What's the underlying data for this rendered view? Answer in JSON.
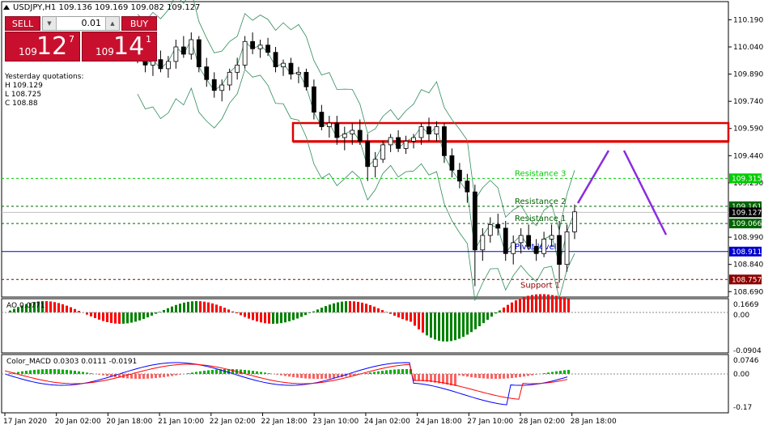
{
  "window": {
    "symbol_title": "USDJPY,H1  109.136 109.169 109.082 109.127",
    "bg": "#ffffff",
    "frame_color": "#000000"
  },
  "trade_panel": {
    "sell_label": "SELL",
    "buy_label": "BUY",
    "lot_value": "0.01",
    "sell_price_prefix": "109",
    "sell_price_big": "12",
    "sell_price_sup": "7",
    "buy_price_prefix": "109",
    "buy_price_big": "14",
    "buy_price_sup": "1",
    "color": "#c8102e"
  },
  "yesterday": {
    "title": "Yesterday quotations:",
    "high": "H 109.129",
    "low": "L 108.725",
    "close": "C 108.88"
  },
  "price_axis": {
    "ticks": [
      "110.190",
      "110.040",
      "109.890",
      "109.740",
      "109.590",
      "109.440",
      "109.290",
      "108.990",
      "108.840",
      "108.690"
    ],
    "tick_values": [
      110.19,
      110.04,
      109.89,
      109.74,
      109.59,
      109.44,
      109.29,
      108.99,
      108.84,
      108.69
    ],
    "badges": [
      {
        "text": "109.315",
        "value": 109.315,
        "color": "#00cc00"
      },
      {
        "text": "109.161",
        "value": 109.161,
        "color": "#006400"
      },
      {
        "text": "109.127",
        "value": 109.127,
        "color": "#000000"
      },
      {
        "text": "109.066",
        "value": 109.066,
        "color": "#006400"
      },
      {
        "text": "108.911",
        "value": 108.911,
        "color": "#0000cc"
      },
      {
        "text": "108.757",
        "value": 108.757,
        "color": "#8b0000"
      }
    ]
  },
  "levels": [
    {
      "label": "Resistance 3",
      "value": 109.315,
      "color": "#00cc00",
      "style": "dashed"
    },
    {
      "label": "Resistance 2",
      "value": 109.161,
      "color": "#006400",
      "style": "dashed"
    },
    {
      "label": "Resistance 1",
      "value": 109.066,
      "color": "#006400",
      "style": "dashed"
    },
    {
      "label": "Pivot level",
      "value": 108.911,
      "color": "#0000cc",
      "style": "solid"
    },
    {
      "label": "Support 1",
      "value": 108.757,
      "color": "#8b0000",
      "style": "dashed"
    }
  ],
  "indicators": {
    "ao": {
      "label": "AO 0.0771",
      "ticks": [
        "0.1669",
        "0.00",
        "-0.0904"
      ]
    },
    "macd": {
      "label": "Color_MACD 0.0303 0.0111 -0.0191",
      "ticks": [
        "0.0746",
        "0.00",
        "-0.17"
      ]
    }
  },
  "time_axis": {
    "labels": [
      "17 Jan 2020",
      "20 Jan 02:00",
      "20 Jan 18:00",
      "21 Jan 10:00",
      "22 Jan 02:00",
      "22 Jan 18:00",
      "23 Jan 10:00",
      "24 Jan 02:00",
      "24 Jan 18:00",
      "27 Jan 10:00",
      "28 Jan 02:00",
      "28 Jan 18:00"
    ]
  },
  "chart_data": {
    "type": "candlestick",
    "title": "USDJPY,H1",
    "ylim": [
      108.66,
      110.29
    ],
    "series": [
      {
        "name": "price",
        "points": [
          [
            109.98,
            110.05,
            109.95,
            110.0
          ],
          [
            110.0,
            110.03,
            109.9,
            109.94
          ],
          [
            109.94,
            110.0,
            109.88,
            109.97
          ],
          [
            109.97,
            110.02,
            109.9,
            109.92
          ],
          [
            109.92,
            109.99,
            109.87,
            109.96
          ],
          [
            109.96,
            110.08,
            109.92,
            110.04
          ],
          [
            110.04,
            110.1,
            109.98,
            110.0
          ],
          [
            110.0,
            110.12,
            109.97,
            110.08
          ],
          [
            110.08,
            110.1,
            109.9,
            109.93
          ],
          [
            109.93,
            109.98,
            109.82,
            109.86
          ],
          [
            109.86,
            109.9,
            109.76,
            109.8
          ],
          [
            109.8,
            109.86,
            109.74,
            109.83
          ],
          [
            109.83,
            109.92,
            109.8,
            109.9
          ],
          [
            109.9,
            109.98,
            109.86,
            109.94
          ],
          [
            109.94,
            110.1,
            109.92,
            110.07
          ],
          [
            110.07,
            110.12,
            110.0,
            110.03
          ],
          [
            110.03,
            110.08,
            109.98,
            110.05
          ],
          [
            110.05,
            110.09,
            109.99,
            110.01
          ],
          [
            110.01,
            110.04,
            109.9,
            109.93
          ],
          [
            109.93,
            109.97,
            109.88,
            109.95
          ],
          [
            109.95,
            109.98,
            109.86,
            109.89
          ],
          [
            109.89,
            109.93,
            109.84,
            109.9
          ],
          [
            109.9,
            109.92,
            109.8,
            109.82
          ],
          [
            109.82,
            109.86,
            109.64,
            109.68
          ],
          [
            109.68,
            109.72,
            109.58,
            109.6
          ],
          [
            109.6,
            109.66,
            109.54,
            109.62
          ],
          [
            109.62,
            109.66,
            109.5,
            109.54
          ],
          [
            109.54,
            109.6,
            109.47,
            109.56
          ],
          [
            109.56,
            109.62,
            109.5,
            109.58
          ],
          [
            109.58,
            109.64,
            109.5,
            109.52
          ],
          [
            109.52,
            109.56,
            109.3,
            109.38
          ],
          [
            109.38,
            109.46,
            109.32,
            109.42
          ],
          [
            109.42,
            109.52,
            109.4,
            109.5
          ],
          [
            109.5,
            109.56,
            109.46,
            109.54
          ],
          [
            109.54,
            109.58,
            109.46,
            109.48
          ],
          [
            109.48,
            109.55,
            109.45,
            109.52
          ],
          [
            109.52,
            109.56,
            109.48,
            109.54
          ],
          [
            109.54,
            109.62,
            109.5,
            109.6
          ],
          [
            109.6,
            109.65,
            109.52,
            109.56
          ],
          [
            109.56,
            109.63,
            109.52,
            109.6
          ],
          [
            109.6,
            109.62,
            109.4,
            109.44
          ],
          [
            109.44,
            109.48,
            109.32,
            109.36
          ],
          [
            109.36,
            109.4,
            109.26,
            109.3
          ],
          [
            109.3,
            109.34,
            109.18,
            109.24
          ],
          [
            109.24,
            109.28,
            108.72,
            108.92
          ],
          [
            108.92,
            109.04,
            108.86,
            109.0
          ],
          [
            109.0,
            109.1,
            108.96,
            109.06
          ],
          [
            109.06,
            109.12,
            109.0,
            109.04
          ],
          [
            109.04,
            109.08,
            108.86,
            108.9
          ],
          [
            108.9,
            109.0,
            108.84,
            108.96
          ],
          [
            108.96,
            109.04,
            108.9,
            109.0
          ],
          [
            109.0,
            109.06,
            108.92,
            108.94
          ],
          [
            108.94,
            108.98,
            108.86,
            108.9
          ],
          [
            108.9,
            109.02,
            108.88,
            108.98
          ],
          [
            108.98,
            109.06,
            108.94,
            109.0
          ],
          [
            109.0,
            109.08,
            108.74,
            108.84
          ],
          [
            108.84,
            109.06,
            108.8,
            109.02
          ],
          [
            109.02,
            109.17,
            108.98,
            109.13
          ]
        ]
      }
    ]
  }
}
